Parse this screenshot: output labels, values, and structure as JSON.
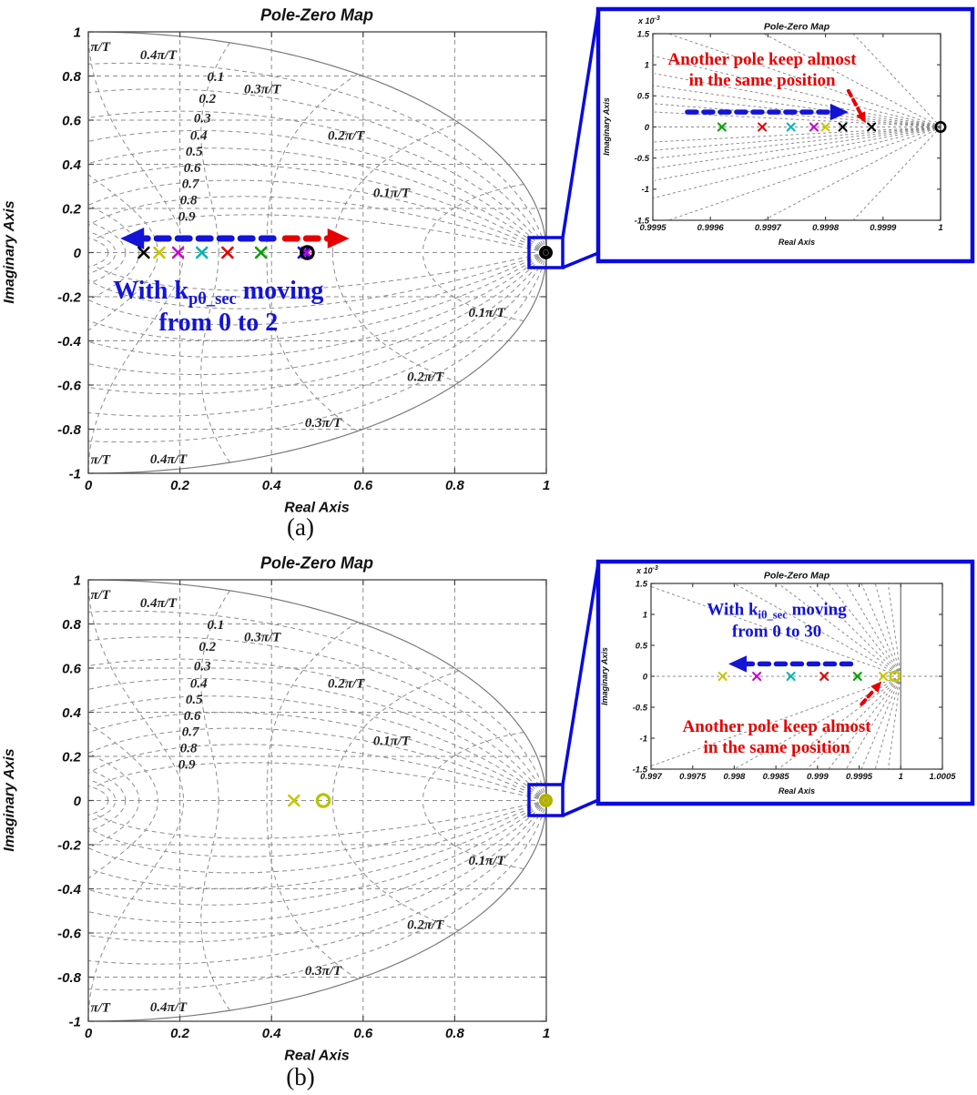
{
  "figure": {
    "captions": [
      "(a)",
      "(b)"
    ],
    "colors": {
      "annotation_blue": "#1414d6",
      "annotation_red": "#e60000",
      "inset_border_blue": "#0a0ae0",
      "grid_gray": "#8c8c8c",
      "pole_black": "#000000",
      "pole_yellow": "#c6c600",
      "pole_magenta": "#cc00cc",
      "pole_cyan": "#00b4b4",
      "pole_red": "#e00000",
      "pole_green": "#00a000",
      "pole_blue": "#0000dd",
      "pole_olive": "#b0b000"
    }
  },
  "chart_data": [
    {
      "type": "scatter",
      "id": "pzmap-main-a",
      "title": "Pole-Zero Map",
      "xlabel": "Real Axis",
      "ylabel": "Imaginary Axis",
      "xlim": [
        0,
        1
      ],
      "ylim": [
        -1,
        1
      ],
      "xtick_values": [
        0,
        0.2,
        0.4,
        0.6,
        0.8,
        1
      ],
      "xtick_labels": [
        "0",
        "0.2",
        "0.4",
        "0.6",
        "0.8",
        "1"
      ],
      "ytick_values": [
        1,
        0.8,
        0.6,
        0.4,
        0.2,
        0,
        -0.2,
        -0.4,
        -0.6,
        -0.8,
        -1
      ],
      "ytick_labels": [
        "1",
        "0.8",
        "0.6",
        "0.4",
        "0.2",
        "0",
        "-0.2",
        "-0.4",
        "-0.6",
        "-0.8",
        "-1"
      ],
      "grid": "zgrid+cartesian",
      "zgrid": {
        "zeta": [
          0.1,
          0.2,
          0.3,
          0.4,
          0.5,
          0.6,
          0.7,
          0.8,
          0.9
        ],
        "freq_pi": [
          0.1,
          0.2,
          0.3,
          0.4,
          0.5,
          0.6,
          0.7,
          0.8,
          0.9,
          1.0
        ]
      },
      "grid_labels": [
        {
          "text": "π/T",
          "x": 0.005,
          "y": 0.935,
          "anchor": "start"
        },
        {
          "text": "0.4π/T",
          "x": 0.153,
          "y": 0.897
        },
        {
          "text": "0.1",
          "x": 0.278,
          "y": 0.798
        },
        {
          "text": "0.3π/T",
          "x": 0.38,
          "y": 0.744
        },
        {
          "text": "0.2",
          "x": 0.26,
          "y": 0.699
        },
        {
          "text": "0.3",
          "x": 0.249,
          "y": 0.612
        },
        {
          "text": "0.4",
          "x": 0.241,
          "y": 0.534
        },
        {
          "text": "0.2π/T",
          "x": 0.563,
          "y": 0.534
        },
        {
          "text": "0.5",
          "x": 0.231,
          "y": 0.46
        },
        {
          "text": "0.6",
          "x": 0.227,
          "y": 0.386
        },
        {
          "text": "0.7",
          "x": 0.223,
          "y": 0.315
        },
        {
          "text": "0.8",
          "x": 0.219,
          "y": 0.241
        },
        {
          "text": "0.9",
          "x": 0.215,
          "y": 0.167
        },
        {
          "text": "0.1π/T",
          "x": 0.662,
          "y": 0.274
        },
        {
          "text": "0.1π/T",
          "x": 0.87,
          "y": -0.27
        },
        {
          "text": "0.2π/T",
          "x": 0.736,
          "y": -0.559
        },
        {
          "text": "0.3π/T",
          "x": 0.513,
          "y": -0.769
        },
        {
          "text": "0.4π/T",
          "x": 0.175,
          "y": -0.934
        },
        {
          "text": "π/T",
          "x": 0.005,
          "y": -0.935,
          "anchor": "start"
        }
      ],
      "markers": [
        {
          "x": 0.121,
          "y": 0,
          "m": "x",
          "c": "#000000"
        },
        {
          "x": 0.155,
          "y": 0,
          "m": "x",
          "c": "#c6c600"
        },
        {
          "x": 0.196,
          "y": 0,
          "m": "x",
          "c": "#cc00cc"
        },
        {
          "x": 0.248,
          "y": 0,
          "m": "x",
          "c": "#00b4b4"
        },
        {
          "x": 0.304,
          "y": 0,
          "m": "x",
          "c": "#e00000"
        },
        {
          "x": 0.377,
          "y": 0,
          "m": "x",
          "c": "#00a000"
        },
        {
          "x": 0.47,
          "y": 0,
          "m": "x",
          "c": "#0000dd"
        },
        {
          "x": 0.477,
          "y": 0,
          "m": "x",
          "c": "#cc00cc"
        },
        {
          "x": 0.478,
          "y": 0,
          "m": "o",
          "c": "#000000"
        },
        {
          "x": 0.999,
          "y": 0,
          "m": "blob",
          "c": "#000000"
        }
      ],
      "arrows": [
        {
          "x1": 0.404,
          "y1": 0.064,
          "x2": 0.07,
          "y2": 0.064,
          "c": "#1414d6",
          "w": 7,
          "dash": "13 10",
          "head": 26
        },
        {
          "x1": 0.43,
          "y1": 0.064,
          "x2": 0.57,
          "y2": 0.064,
          "c": "#e60000",
          "w": 7,
          "dash": "13 10",
          "head": 24
        }
      ],
      "annotations": [
        {
          "c": "#1414d6",
          "x": 0.284,
          "y": -0.168,
          "fs": 28,
          "lh": 35,
          "lines": [
            [
              {
                "t": "With k"
              },
              {
                "t": "pθ_sec",
                "sub": true
              },
              {
                "t": " moving"
              }
            ],
            [
              {
                "t": "from 0 to 2"
              }
            ]
          ]
        }
      ]
    },
    {
      "type": "scatter",
      "id": "pzmap-inset-a",
      "title": "Pole-Zero Map",
      "xlabel": "Real Axis",
      "ylabel": "Imaginary Axis",
      "y_scale": {
        "mantissa": "x 10",
        "exponent": "-3"
      },
      "xlim": [
        0.9995,
        1
      ],
      "ylim": [
        -0.0015,
        0.0015
      ],
      "xtick_values": [
        0.9995,
        0.9996,
        0.9997,
        0.9998,
        0.9999,
        1
      ],
      "xtick_labels": [
        "0.9995",
        "0.9996",
        "0.9997",
        "0.9998",
        "0.9999",
        "1"
      ],
      "ytick_values": [
        0.0015,
        0.001,
        0.0005,
        0,
        -0.0005,
        -0.001,
        -0.0015
      ],
      "ytick_labels": [
        "1.5",
        "1",
        "0.5",
        "0",
        "-0.5",
        "-1",
        "-1.5"
      ],
      "grid": "zgrid",
      "zgrid": {
        "zeta": [
          0.1,
          0.2,
          0.3,
          0.4,
          0.5,
          0.6,
          0.7,
          0.8,
          0.9
        ],
        "freq_pi": [
          0.1,
          0.2,
          0.3,
          0.4,
          0.5,
          0.6,
          0.7,
          0.8,
          0.9,
          1.0
        ]
      },
      "grid_labels": [],
      "markers": [
        {
          "x": 0.99962,
          "y": 0,
          "m": "x",
          "c": "#00a000"
        },
        {
          "x": 0.99969,
          "y": 0,
          "m": "x",
          "c": "#e00000"
        },
        {
          "x": 0.99974,
          "y": 0,
          "m": "x",
          "c": "#00b4b4"
        },
        {
          "x": 0.99978,
          "y": 0,
          "m": "x",
          "c": "#cc00cc"
        },
        {
          "x": 0.9998,
          "y": 0,
          "m": "x",
          "c": "#c6c600"
        },
        {
          "x": 0.99983,
          "y": 0,
          "m": "x",
          "c": "#000000"
        },
        {
          "x": 0.99988,
          "y": 0,
          "m": "x",
          "c": "#000000"
        },
        {
          "x": 1.0,
          "y": 0,
          "m": "o",
          "c": "#000000"
        }
      ],
      "arrows": [
        {
          "x1": 0.99956,
          "y1": 0.00024,
          "x2": 0.99984,
          "y2": 0.00024,
          "c": "#1414d6",
          "w": 5.5,
          "dash": "10 8",
          "head": 20
        },
        {
          "x1": 0.99984,
          "y1": 0.00058,
          "x2": 0.99987,
          "y2": 6e-05,
          "c": "#e60000",
          "w": 4,
          "dash": "6 5",
          "head": 12
        }
      ],
      "annotations": [
        {
          "c": "#e60000",
          "x": 0.99969,
          "y": 0.0011,
          "fs": 19,
          "lh": 23,
          "lines": [
            [
              {
                "t": "Another pole keep almost"
              }
            ],
            [
              {
                "t": "in the same position"
              }
            ]
          ]
        }
      ]
    },
    {
      "type": "scatter",
      "id": "pzmap-main-b",
      "title": "Pole-Zero Map",
      "xlabel": "Real Axis",
      "ylabel": "Imaginary Axis",
      "xlim": [
        0,
        1
      ],
      "ylim": [
        -1,
        1
      ],
      "xtick_values": [
        0,
        0.2,
        0.4,
        0.6,
        0.8,
        1
      ],
      "xtick_labels": [
        "0",
        "0.2",
        "0.4",
        "0.6",
        "0.8",
        "1"
      ],
      "ytick_values": [
        1,
        0.8,
        0.6,
        0.4,
        0.2,
        0,
        -0.2,
        -0.4,
        -0.6,
        -0.8,
        -1
      ],
      "ytick_labels": [
        "1",
        "0.8",
        "0.6",
        "0.4",
        "0.2",
        "0",
        "-0.2",
        "-0.4",
        "-0.6",
        "-0.8",
        "-1"
      ],
      "grid": "zgrid+cartesian",
      "zgrid": {
        "zeta": [
          0.1,
          0.2,
          0.3,
          0.4,
          0.5,
          0.6,
          0.7,
          0.8,
          0.9
        ],
        "freq_pi": [
          0.1,
          0.2,
          0.3,
          0.4,
          0.5,
          0.6,
          0.7,
          0.8,
          0.9,
          1.0
        ]
      },
      "grid_labels": [
        {
          "text": "π/T",
          "x": 0.005,
          "y": 0.935,
          "anchor": "start"
        },
        {
          "text": "0.4π/T",
          "x": 0.153,
          "y": 0.897
        },
        {
          "text": "0.1",
          "x": 0.278,
          "y": 0.798
        },
        {
          "text": "0.3π/T",
          "x": 0.38,
          "y": 0.744
        },
        {
          "text": "0.2",
          "x": 0.26,
          "y": 0.699
        },
        {
          "text": "0.3",
          "x": 0.249,
          "y": 0.612
        },
        {
          "text": "0.4",
          "x": 0.241,
          "y": 0.534
        },
        {
          "text": "0.2π/T",
          "x": 0.563,
          "y": 0.534
        },
        {
          "text": "0.5",
          "x": 0.231,
          "y": 0.46
        },
        {
          "text": "0.6",
          "x": 0.227,
          "y": 0.386
        },
        {
          "text": "0.7",
          "x": 0.223,
          "y": 0.315
        },
        {
          "text": "0.8",
          "x": 0.219,
          "y": 0.241
        },
        {
          "text": "0.9",
          "x": 0.215,
          "y": 0.167
        },
        {
          "text": "0.1π/T",
          "x": 0.662,
          "y": 0.274
        },
        {
          "text": "0.1π/T",
          "x": 0.87,
          "y": -0.27
        },
        {
          "text": "0.2π/T",
          "x": 0.736,
          "y": -0.559
        },
        {
          "text": "0.3π/T",
          "x": 0.513,
          "y": -0.769
        },
        {
          "text": "0.4π/T",
          "x": 0.175,
          "y": -0.934
        },
        {
          "text": "π/T",
          "x": 0.005,
          "y": -0.935,
          "anchor": "start"
        }
      ],
      "markers": [
        {
          "x": 0.449,
          "y": 0,
          "m": "x",
          "c": "#c6c600"
        },
        {
          "x": 0.513,
          "y": 0,
          "m": "o",
          "c": "#b4c400"
        },
        {
          "x": 0.999,
          "y": 0,
          "m": "blob",
          "c": "#b0b000"
        }
      ],
      "arrows": [],
      "annotations": []
    },
    {
      "type": "scatter",
      "id": "pzmap-inset-b",
      "title": "Pole-Zero Map",
      "xlabel": "Real Axis",
      "ylabel": "Imaginary Axis",
      "y_scale": {
        "mantissa": "x 10",
        "exponent": "-3"
      },
      "xlim": [
        0.997,
        1.0005
      ],
      "ylim": [
        -0.0015,
        0.0015
      ],
      "xtick_values": [
        0.997,
        0.9975,
        0.998,
        0.9985,
        0.999,
        0.9995,
        1,
        1.0005
      ],
      "xtick_labels": [
        "0.997",
        "0.9975",
        "0.998",
        "0.9985",
        "0.999",
        "0.9995",
        "1",
        "1.0005"
      ],
      "ytick_values": [
        0.0015,
        0.001,
        0.0005,
        0,
        -0.0005,
        -0.001,
        -0.0015
      ],
      "ytick_labels": [
        "1.5",
        "1",
        "0.5",
        "0",
        "-0.5",
        "-1",
        "-1.5"
      ],
      "grid": "zgrid",
      "zgrid": {
        "zeta": [
          0.1,
          0.2,
          0.3,
          0.4,
          0.5,
          0.6,
          0.7,
          0.8,
          0.9
        ],
        "freq_pi": [
          0.1,
          0.2,
          0.3,
          0.4,
          0.5,
          0.6,
          0.7,
          0.8,
          0.9,
          1.0
        ]
      },
      "grid_labels": [],
      "markers": [
        {
          "x": 0.99786,
          "y": 0,
          "m": "x",
          "c": "#c6c600"
        },
        {
          "x": 0.99827,
          "y": 0,
          "m": "x",
          "c": "#cc00cc"
        },
        {
          "x": 0.99868,
          "y": 0,
          "m": "x",
          "c": "#00b4b4"
        },
        {
          "x": 0.99908,
          "y": 0,
          "m": "x",
          "c": "#e00000"
        },
        {
          "x": 0.99948,
          "y": 0,
          "m": "x",
          "c": "#00a000"
        },
        {
          "x": 0.99979,
          "y": 0,
          "m": "x",
          "c": "#c6c600"
        },
        {
          "x": 0.99993,
          "y": 0,
          "m": "o",
          "c": "#c6c600"
        }
      ],
      "arrows": [
        {
          "x1": 0.9994,
          "y1": 0.0002,
          "x2": 0.99793,
          "y2": 0.0002,
          "c": "#1414d6",
          "w": 5.5,
          "dash": "10 8",
          "head": 20
        },
        {
          "x1": 0.99953,
          "y1": -0.00045,
          "x2": 0.99977,
          "y2": -8e-05,
          "c": "#e60000",
          "w": 4,
          "dash": "6 5",
          "head": 12
        }
      ],
      "annotations": [
        {
          "c": "#1414d6",
          "x": 0.99851,
          "y": 0.00109,
          "fs": 19,
          "lh": 24,
          "lines": [
            [
              {
                "t": "With k"
              },
              {
                "t": "iθ_sec",
                "sub": true
              },
              {
                "t": " moving"
              }
            ],
            [
              {
                "t": "from 0 to 30"
              }
            ]
          ]
        },
        {
          "c": "#e60000",
          "x": 0.99851,
          "y": -0.0008,
          "fs": 19,
          "lh": 23,
          "lines": [
            [
              {
                "t": "Another pole keep almost"
              }
            ],
            [
              {
                "t": "in the same position"
              }
            ]
          ]
        }
      ]
    }
  ]
}
